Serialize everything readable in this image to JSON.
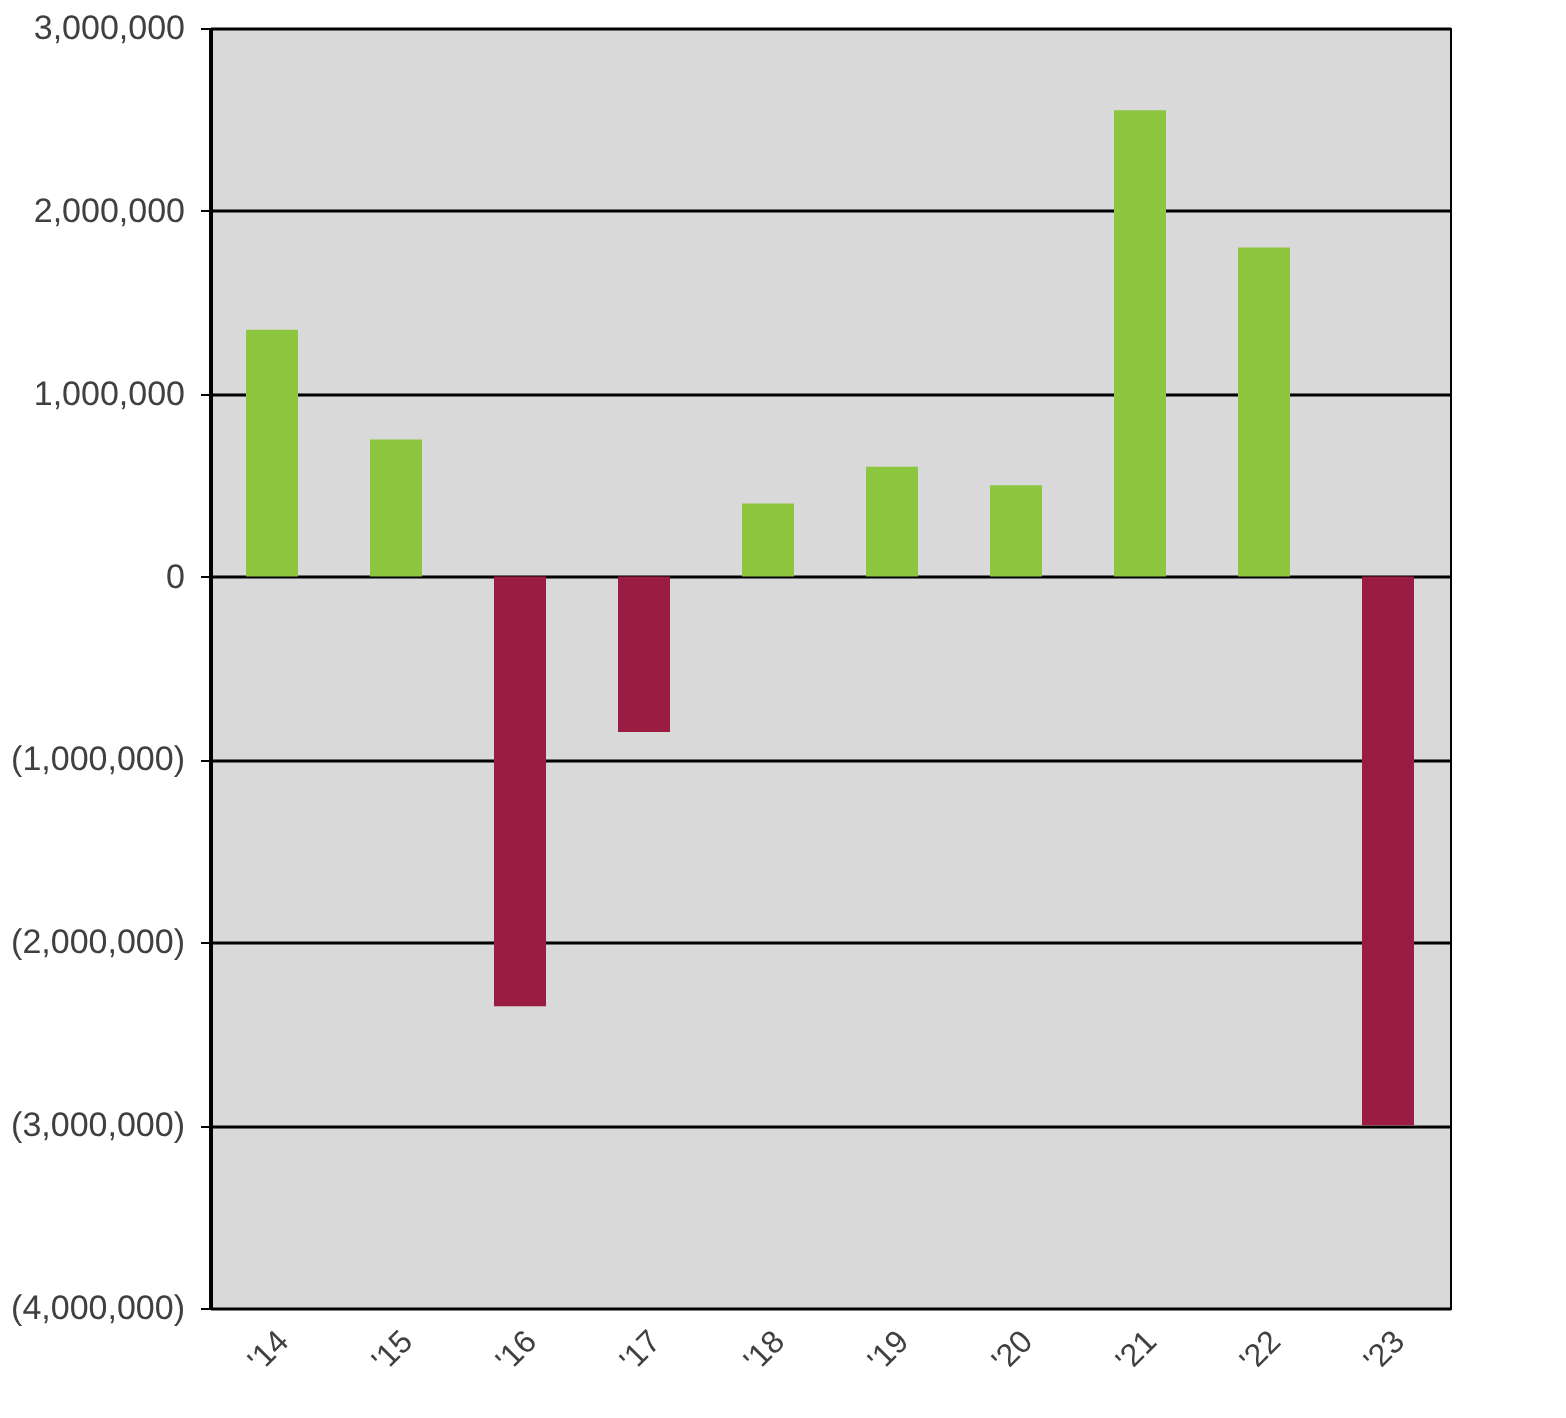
{
  "chart_data": {
    "type": "bar",
    "categories": [
      "'14",
      "'15",
      "'16",
      "'17",
      "'18",
      "'19",
      "'20",
      "'21",
      "'22",
      "'23"
    ],
    "values": [
      1350000,
      750000,
      -2350000,
      -850000,
      400000,
      600000,
      500000,
      2550000,
      1800000,
      -3000000
    ],
    "colors": [
      "#8dc63f",
      "#8dc63f",
      "#9b1c42",
      "#9b1c42",
      "#8dc63f",
      "#8dc63f",
      "#8dc63f",
      "#8dc63f",
      "#8dc63f",
      "#9b1c42"
    ],
    "ylim": [
      -4000000,
      3000000
    ],
    "yticks": [
      {
        "value": -4000000,
        "label": "(4,000,000)"
      },
      {
        "value": -3000000,
        "label": "(3,000,000)"
      },
      {
        "value": -2000000,
        "label": "(2,000,000)"
      },
      {
        "value": -1000000,
        "label": "(1,000,000)"
      },
      0,
      {
        "value": 1000000,
        "label": "1,000,000"
      },
      {
        "value": 2000000,
        "label": "2,000,000"
      },
      {
        "value": 3000000,
        "label": "3,000,000"
      }
    ],
    "grid": "y",
    "legend": false
  }
}
